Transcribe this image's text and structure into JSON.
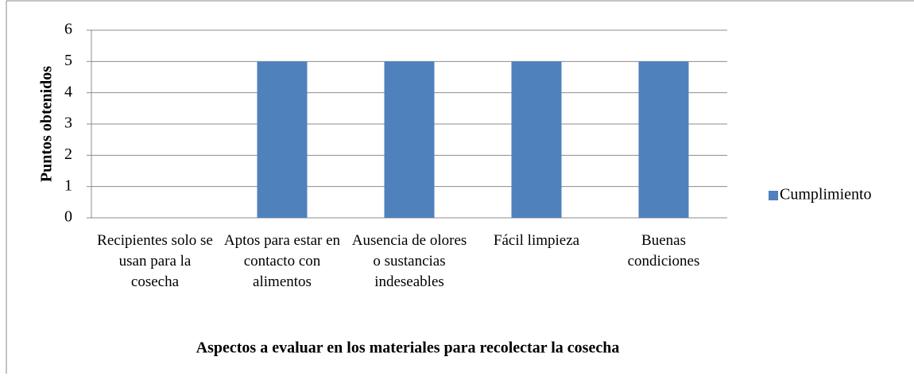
{
  "chart_data": {
    "type": "bar",
    "categories": [
      "Recipientes solo se usan para la cosecha",
      "Aptos para estar en contacto con alimentos",
      "Ausencia de olores o sustancias indeseables",
      "Fácil limpieza",
      "Buenas condiciones"
    ],
    "series": [
      {
        "name": "Cumplimiento",
        "color": "#4f81bd",
        "values": [
          0,
          5,
          5,
          5,
          5
        ]
      }
    ],
    "ylim": [
      0,
      6
    ],
    "yticks": [
      0,
      1,
      2,
      3,
      4,
      5,
      6
    ],
    "grid": true,
    "legend": "right",
    "x_label": "Aspectos a evaluar  en los materiales  para recolectar la cosecha",
    "y_label": "Puntos obtenidos"
  }
}
